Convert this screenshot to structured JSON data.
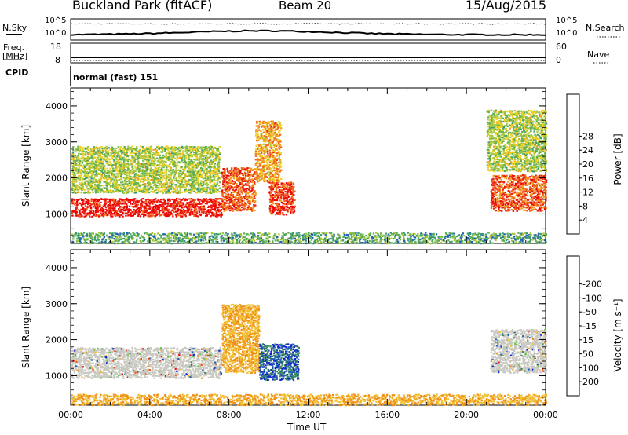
{
  "header": {
    "station": "Buckland Park (fitACF)",
    "beam": "Beam 20",
    "date": "15/Aug/2015"
  },
  "top_panels": {
    "nsky_label": "N.Sky",
    "nsky_ticks": [
      "10^5",
      "10^0"
    ],
    "nsearch_label": "N.Search",
    "nsearch_ticks": [
      "10^5",
      "10^0"
    ],
    "freq_label": "Freq.",
    "freq_unit": "[MHz]",
    "freq_ticks": [
      "18",
      "8"
    ],
    "nave_label": "Nave",
    "nave_ticks": [
      "60",
      "0"
    ],
    "cpid_label": "CPID",
    "cpid_text": "normal (fast) 151"
  },
  "chart_data": [
    {
      "type": "heatmap",
      "title": "",
      "xlabel": "",
      "ylabel": "Slant Range [km]",
      "x_range_hours": [
        0,
        24
      ],
      "ylim": [
        180,
        4500
      ],
      "y_ticks": [
        1000,
        2000,
        3000,
        4000
      ],
      "colorbar": {
        "label": "Power [dB]",
        "ticks": [
          "4",
          "8",
          "12",
          "16",
          "20",
          "24",
          "28"
        ],
        "colors": [
          "#1010e0",
          "#2060b0",
          "#3a9a70",
          "#60b050",
          "#a8c838",
          "#f0d020",
          "#f0a020",
          "#f06818",
          "#e82010",
          "#f00000"
        ]
      },
      "regions": [
        {
          "t": [
            0,
            7.6
          ],
          "r": [
            950,
            1450
          ],
          "level": 28
        },
        {
          "t": [
            7.6,
            9.3
          ],
          "r": [
            1100,
            2300
          ],
          "level": 24
        },
        {
          "t": [
            9.3,
            10.6
          ],
          "r": [
            1900,
            3600
          ],
          "level": 20
        },
        {
          "t": [
            10.0,
            11.3
          ],
          "r": [
            1000,
            1900
          ],
          "level": 26
        },
        {
          "t": [
            0,
            7.5
          ],
          "r": [
            1600,
            2900
          ],
          "level": 14
        },
        {
          "t": [
            21.2,
            24
          ],
          "r": [
            1100,
            2100
          ],
          "level": 24
        },
        {
          "t": [
            21.0,
            24
          ],
          "r": [
            2200,
            3900
          ],
          "level": 14
        },
        {
          "t": [
            0,
            24
          ],
          "r": [
            200,
            500
          ],
          "level": 10
        }
      ]
    },
    {
      "type": "heatmap",
      "title": "",
      "xlabel": "Time UT",
      "ylabel": "Slant Range [km]",
      "x_range_hours": [
        0,
        24
      ],
      "ylim": [
        180,
        4500
      ],
      "y_ticks": [
        1000,
        2000,
        3000,
        4000
      ],
      "x_ticks": [
        "00:00",
        "04:00",
        "08:00",
        "12:00",
        "16:00",
        "20:00",
        "00:00"
      ],
      "colorbar": {
        "label": "Velocity [m s⁻¹]",
        "ticks": [
          "200",
          "100",
          "50",
          "15",
          "-15",
          "-50",
          "-100",
          "-200"
        ],
        "colors": [
          "#1020d0",
          "#205cb0",
          "#3a8a5a",
          "#60c040",
          "#c8c8c0",
          "#c8c8c0",
          "#f0c030",
          "#f09018",
          "#f05010",
          "#e81010"
        ]
      },
      "regions": [
        {
          "t": [
            0,
            7.6
          ],
          "r": [
            950,
            1800
          ],
          "value": 0
        },
        {
          "t": [
            7.6,
            9.5
          ],
          "r": [
            1100,
            3000
          ],
          "value": -50
        },
        {
          "t": [
            9.5,
            11.5
          ],
          "r": [
            900,
            1900
          ],
          "value": 150
        },
        {
          "t": [
            21.2,
            24
          ],
          "r": [
            1100,
            2300
          ],
          "value": 0
        },
        {
          "t": [
            0,
            24
          ],
          "r": [
            200,
            500
          ],
          "value": -50
        }
      ]
    }
  ]
}
